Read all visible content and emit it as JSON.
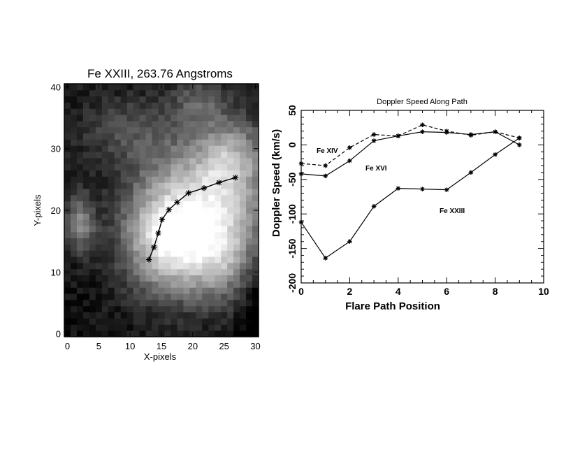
{
  "chart_data": [
    {
      "type": "heatmap",
      "title": "Fe XXIII, 263.76 Angstroms",
      "xlabel": "X-pixels",
      "ylabel": "Y-pixels",
      "xlim": [
        -0.5,
        30.5
      ],
      "ylim": [
        -0.5,
        40.5
      ],
      "xticks": [
        "0",
        "5",
        "10",
        "15",
        "20",
        "25",
        "30"
      ],
      "yticks": [
        "0",
        "10",
        "20",
        "30",
        "40"
      ],
      "colormap": "grayscale",
      "path": {
        "marker": "asterisk",
        "x": [
          13.0,
          13.8,
          14.5,
          15.1,
          16.2,
          17.5,
          19.3,
          21.8,
          24.2,
          26.8
        ],
        "y": [
          12.0,
          14.0,
          16.3,
          18.5,
          20.1,
          21.3,
          22.8,
          23.6,
          24.5,
          25.3
        ]
      }
    },
    {
      "type": "line",
      "title": "Doppler Speed Along Path",
      "xlabel": "Flare Path Position",
      "ylabel": "Doppler Speed (km/s)",
      "xlim": [
        0,
        10
      ],
      "ylim": [
        -200,
        50
      ],
      "xticks": [
        "0",
        "2",
        "4",
        "6",
        "8",
        "10"
      ],
      "yticks": [
        "50",
        "0",
        "-50",
        "-100",
        "-150",
        "-200"
      ],
      "x": [
        0,
        1,
        2,
        3,
        4,
        5,
        6,
        7,
        8,
        9
      ],
      "series": [
        {
          "name": "Fe XIV",
          "line_style": "dashed",
          "values": [
            -27,
            -30,
            -4,
            15,
            13,
            29,
            20,
            14,
            19,
            10
          ]
        },
        {
          "name": "Fe XVI",
          "line_style": "solid",
          "values": [
            -42,
            -45,
            -23,
            6,
            13,
            19,
            18,
            15,
            19,
            0
          ]
        },
        {
          "name": "Fe XXIII",
          "line_style": "solid",
          "values": [
            -112,
            -164,
            -140,
            -89,
            -63,
            -64,
            -65,
            -40,
            -14,
            10
          ]
        }
      ]
    }
  ]
}
